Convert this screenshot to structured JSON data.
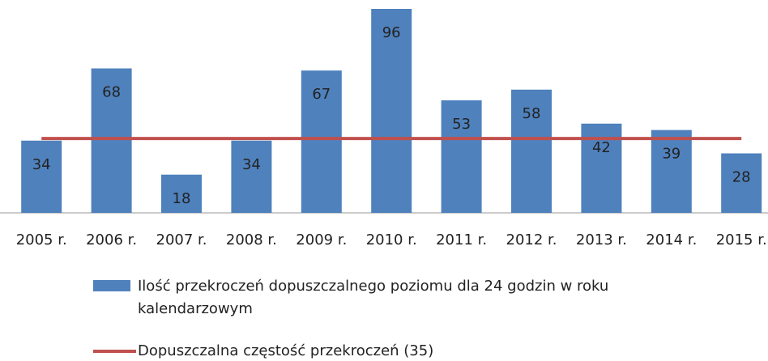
{
  "chart_data": {
    "type": "bar",
    "categories": [
      "2005 r.",
      "2006 r.",
      "2007 r.",
      "2008 r.",
      "2009 r.",
      "2010 r.",
      "2011 r.",
      "2012 r.",
      "2013 r.",
      "2014 r.",
      "2015 r."
    ],
    "ylim": [
      0,
      96
    ],
    "series": [
      {
        "name": "Ilość przekroczeń dopuszczalnego poziomu dla 24 godzin w roku kalendarzowym",
        "type": "bar",
        "color": "#4f81bd",
        "values": [
          34,
          68,
          18,
          34,
          67,
          96,
          53,
          58,
          42,
          39,
          28
        ]
      },
      {
        "name": "Dopuszczalna częstość przekroczeń (35)",
        "type": "line",
        "color": "#c0504d",
        "values": [
          35,
          35,
          35,
          35,
          35,
          35,
          35,
          35,
          35,
          35,
          35
        ]
      }
    ]
  }
}
